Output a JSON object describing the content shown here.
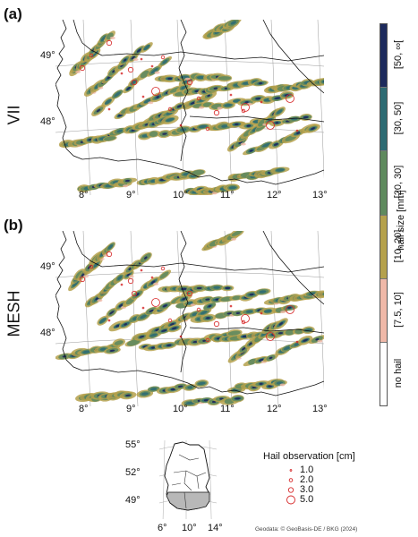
{
  "panels": [
    {
      "label": "(a)",
      "row_label": "VII"
    },
    {
      "label": "(b)",
      "row_label": "MESH"
    }
  ],
  "map_axes": {
    "lon_ticks": [
      "8°",
      "9°",
      "10°",
      "11°",
      "12°",
      "13°"
    ],
    "lat_ticks": [
      "49°",
      "48°"
    ]
  },
  "colorbar": {
    "title": "hail size [mm]",
    "classes": [
      {
        "label": "[50, ∞[",
        "color": "#1d2a5c"
      },
      {
        "label": "[30, 50]",
        "color": "#2e6b73"
      },
      {
        "label": "[20, 30]",
        "color": "#5f8a5e"
      },
      {
        "label": "[10, 20]",
        "color": "#b5a14c"
      },
      {
        "label": "[7.5, 10]",
        "color": "#efb8a8"
      },
      {
        "label": "no hail",
        "color": "#ffffff"
      }
    ]
  },
  "inset": {
    "lat_ticks": [
      "55°",
      "52°",
      "49°"
    ],
    "lon_ticks": [
      "6°",
      "10°",
      "14°"
    ]
  },
  "hail_legend": {
    "title": "Hail observation [cm]",
    "items": [
      {
        "label": "1.0",
        "radius": 1.0
      },
      {
        "label": "2.0",
        "radius": 2.0
      },
      {
        "label": "3.0",
        "radius": 3.0
      },
      {
        "label": "5.0",
        "radius": 5.0
      }
    ],
    "marker_color": "#d62728"
  },
  "credit": "Geodata: © GeoBasis-DE / BKG (2024)"
}
